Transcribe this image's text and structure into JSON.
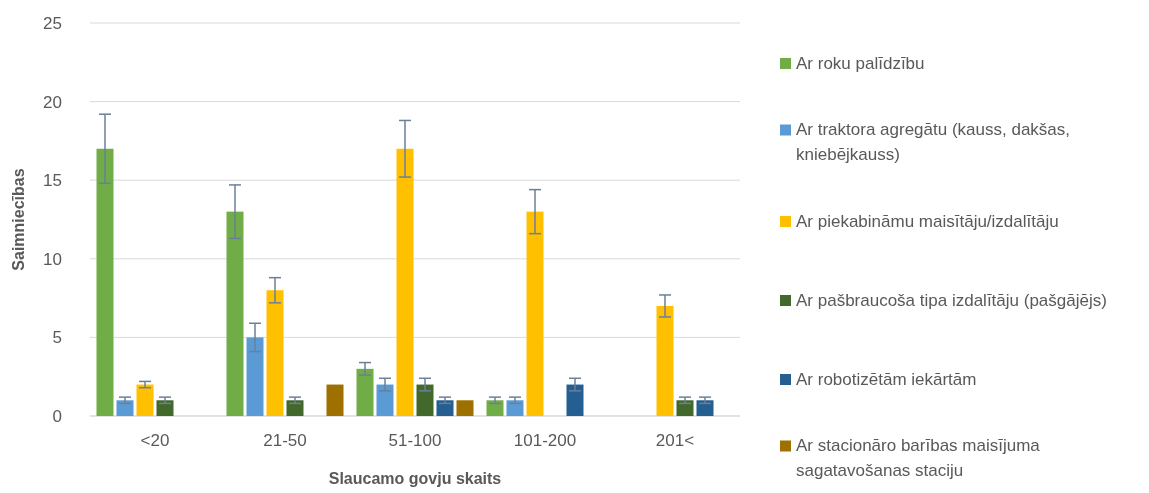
{
  "chart_data": {
    "type": "bar",
    "xlabel": "Slaucamo govju skaits",
    "ylabel": "Saimniecības",
    "categories": [
      "<20",
      "21-50",
      "51-100",
      "101-200",
      "201<"
    ],
    "ylim": [
      0,
      25
    ],
    "yticks": [
      0,
      5,
      10,
      15,
      20,
      25
    ],
    "grid": "y",
    "legend": "right",
    "series": [
      {
        "name": "Ar roku palīdzību",
        "color": "#70ad47",
        "values": [
          17,
          13,
          3,
          1,
          null
        ],
        "errors": [
          2.2,
          1.7,
          0.4,
          0.2,
          null
        ]
      },
      {
        "name": "Ar traktora agregātu (kauss, dakšas, kniebējkauss)",
        "color": "#5b9bd5",
        "values": [
          1,
          5,
          2,
          1,
          null
        ],
        "errors": [
          0.2,
          0.9,
          0.4,
          0.2,
          null
        ]
      },
      {
        "name": "Ar piekabināmu maisītāju/izdalītāju",
        "color": "#ffc000",
        "values": [
          2,
          8,
          17,
          13,
          7
        ],
        "errors": [
          0.2,
          0.8,
          1.8,
          1.4,
          0.7
        ]
      },
      {
        "name": "Ar pašbraucoša tipa izdalītāju (pašgājējs)",
        "color": "#43682b",
        "values": [
          1,
          1,
          2,
          null,
          1
        ],
        "errors": [
          0.2,
          0.2,
          0.4,
          null,
          0.2
        ]
      },
      {
        "name": "Ar robotizētām iekārtām",
        "color": "#255e91",
        "values": [
          null,
          null,
          1,
          2,
          1
        ],
        "errors": [
          null,
          null,
          0.2,
          0.4,
          0.2
        ]
      },
      {
        "name": "Ar stacionāro barības maisījuma sagatavošanas staciju",
        "color": "#9e7000",
        "values": [
          null,
          2,
          1,
          null,
          null
        ],
        "errors": [
          null,
          null,
          null,
          null,
          null
        ]
      }
    ]
  }
}
